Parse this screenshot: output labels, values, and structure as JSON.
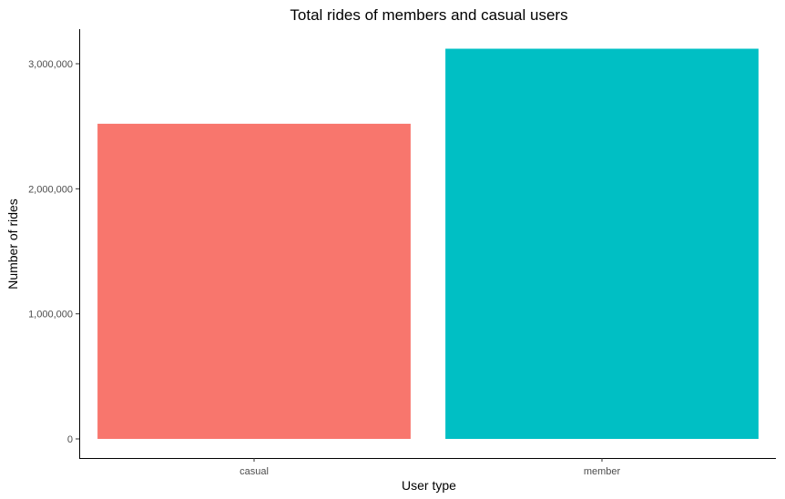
{
  "chart_data": {
    "type": "bar",
    "title": "Total rides of members and casual users",
    "xlabel": "User type",
    "ylabel": "Number of rides",
    "categories": [
      "casual",
      "member"
    ],
    "values": [
      2520000,
      3120000
    ],
    "colors": [
      "#F8766D",
      "#00BFC4"
    ],
    "ylim": [
      0,
      3260000
    ],
    "yticks": [
      0,
      1000000,
      2000000,
      3000000
    ],
    "ytick_labels": [
      "0",
      "1,000,000",
      "2,000,000",
      "3,000,000"
    ],
    "grid": false,
    "legend": "none"
  }
}
